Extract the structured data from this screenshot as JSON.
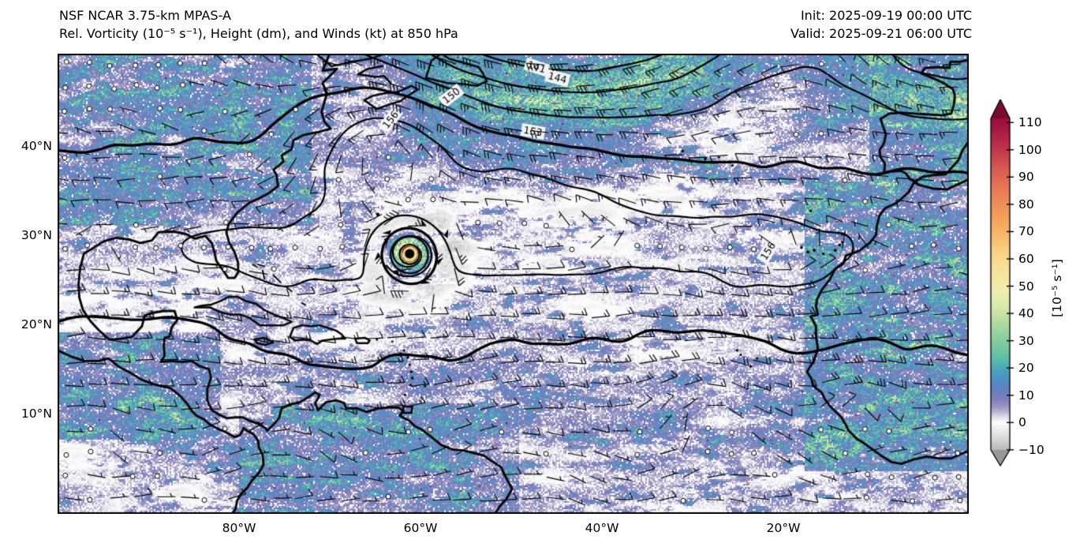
{
  "header": {
    "title_line1": "NSF NCAR 3.75-km MPAS-A",
    "title_line2": "Rel. Vorticity (10⁻⁵ s⁻¹), Height (dm), and Winds (kt) at 850 hPa",
    "init": "Init: 2025-09-19 00:00 UTC",
    "valid": "Valid: 2025-09-21 06:00 UTC"
  },
  "axes": {
    "lat_ticks": [
      {
        "label": "40°N",
        "deg": 40
      },
      {
        "label": "30°N",
        "deg": 30
      },
      {
        "label": "20°N",
        "deg": 20
      },
      {
        "label": "10°N",
        "deg": 10
      }
    ],
    "lon_ticks": [
      {
        "label": "80°W",
        "deg": -80
      },
      {
        "label": "60°W",
        "deg": -60
      },
      {
        "label": "40°W",
        "deg": -40
      },
      {
        "label": "20°W",
        "deg": -20
      }
    ]
  },
  "colorbar": {
    "label": "[10⁻⁵ s⁻¹]",
    "extend": "both",
    "ticks": [
      {
        "label": "110",
        "value": 110
      },
      {
        "label": "100",
        "value": 100
      },
      {
        "label": "90",
        "value": 90
      },
      {
        "label": "80",
        "value": 80
      },
      {
        "label": "70",
        "value": 70
      },
      {
        "label": "60",
        "value": 60
      },
      {
        "label": "50",
        "value": 50
      },
      {
        "label": "40",
        "value": 40
      },
      {
        "label": "30",
        "value": 30
      },
      {
        "label": "20",
        "value": 20
      },
      {
        "label": "10",
        "value": 10
      },
      {
        "label": "0",
        "value": 0
      },
      {
        "label": "−10",
        "value": -10
      }
    ],
    "stops": [
      [
        -15,
        "#8f8f8f"
      ],
      [
        -10,
        "#b9b9b9"
      ],
      [
        -5,
        "#dedede"
      ],
      [
        -1,
        "#f6f6f6"
      ],
      [
        0,
        "#ffffff"
      ],
      [
        2,
        "#e3e1ea"
      ],
      [
        4,
        "#bcb7d2"
      ],
      [
        6,
        "#9c95c2"
      ],
      [
        9,
        "#7f7eba"
      ],
      [
        12,
        "#6681c1"
      ],
      [
        16,
        "#4c8fc6"
      ],
      [
        20,
        "#4da9bb"
      ],
      [
        24,
        "#5fc0a9"
      ],
      [
        30,
        "#83cd9e"
      ],
      [
        36,
        "#aedaa0"
      ],
      [
        42,
        "#d6e7a9"
      ],
      [
        48,
        "#efefaf"
      ],
      [
        54,
        "#f8e6a0"
      ],
      [
        62,
        "#fbd488"
      ],
      [
        70,
        "#f8b467"
      ],
      [
        78,
        "#f19758"
      ],
      [
        86,
        "#e77955"
      ],
      [
        94,
        "#d55752"
      ],
      [
        102,
        "#bc2e4b"
      ],
      [
        110,
        "#a01140"
      ],
      [
        118,
        "#7d0a2f"
      ]
    ]
  },
  "map_overlays": {
    "contour_labels": [
      {
        "text": "156",
        "lon": -63.3,
        "lat": 42.9,
        "angle": -52
      },
      {
        "text": "150",
        "lon": -56.6,
        "lat": 45.6,
        "angle": -38
      },
      {
        "text": "141",
        "lon": -47.2,
        "lat": 48.8,
        "angle": 18
      },
      {
        "text": "144",
        "lon": -44.9,
        "lat": 47.6,
        "angle": 14
      },
      {
        "text": "153",
        "lon": -47.6,
        "lat": 41.6,
        "angle": 10
      },
      {
        "text": "156",
        "lon": -21.7,
        "lat": 28.2,
        "angle": -58
      }
    ],
    "cyclone": {
      "lon": -61.2,
      "lat": 27.9,
      "eye_ring_color": "#f0d878"
    }
  },
  "chart_data": {
    "type": "heatmap",
    "title": "NSF NCAR 3.75-km MPAS-A",
    "subtitle": "Rel. Vorticity (10⁻⁵ s⁻¹), Height (dm), and Winds (kt) at 850 hPa",
    "init_time": "2025-09-19 00:00 UTC",
    "valid_time": "2025-09-21 06:00 UTC",
    "level_hPa": 850,
    "projection": "plate-carree lon/lat over the tropical-subtropical Atlantic",
    "lon_extent_approx": [
      "100°W",
      "0°W"
    ],
    "lat_extent_approx": [
      "1.5°S",
      "50.5°N"
    ],
    "x_tick_labels": [
      "80°W",
      "60°W",
      "40°W",
      "20°W"
    ],
    "y_tick_labels": [
      "40°N",
      "30°N",
      "20°N",
      "10°N"
    ],
    "shaded_field": "relative vorticity speckle texture: mostly 0-20 (white/purple/blue) over open ocean, 20-60 (teal/green/yellow) along filaments, ITCZ and land, rare >80 (red) cores",
    "contour_field": "850-hPa geopotential height (dm), 3-dm interval",
    "contour_labels_visible": [
      141,
      144,
      150,
      153,
      156,
      156
    ],
    "wind_field": "wind barbs in kt; 10-20 kt trade easterlies in tropics, 40-60 kt around deep low north of domain, calm circles scattered",
    "colorbar": {
      "label": "[10⁻⁵ s⁻¹]",
      "ticks": [
        110,
        100,
        90,
        80,
        70,
        60,
        50,
        40,
        30,
        20,
        10,
        0,
        -10
      ],
      "extend": "both"
    },
    "features": [
      "intense tropical cyclone with black eye and tight spiral contours near 61°W 28°N",
      "deep cyclone north of map top (~45°W) with tightly packed height contours labeled 141/144/150",
      "subtropical ridge (156 dm contours) from Nova Scotia across mid-Atlantic to the Canary Islands",
      "ITCZ vorticity filaments between 5°N and 15°N",
      "enhanced colorful vorticity speckle over Iberia and northwest Africa",
      "coastlines: US East/Gulf coast, Caribbean islands, Central/South America, West Africa, Iberia"
    ]
  }
}
